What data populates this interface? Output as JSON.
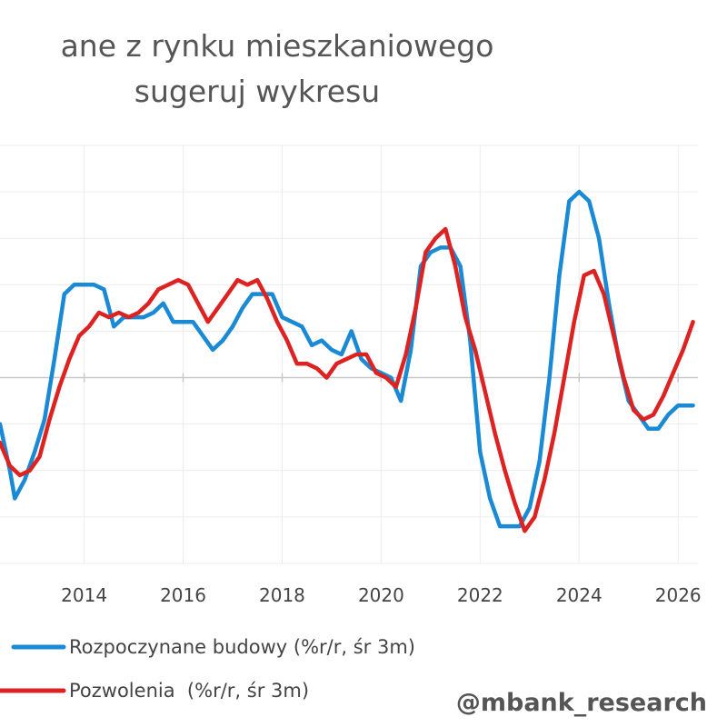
{
  "chart_data": {
    "type": "line",
    "title_lines": [
      "ane z rynku mieszkaniowego",
      "sugeruj wykresu"
    ],
    "xlim": [
      2012.3,
      2026.4
    ],
    "ylim": [
      -40,
      50
    ],
    "x_ticks": [
      2014,
      2016,
      2018,
      2020,
      2022,
      2024,
      2026
    ],
    "x_tick_labels": [
      "2014",
      "2016",
      "2018",
      "2020",
      "2022",
      "2024",
      "2026"
    ],
    "grid": true,
    "legend_position": "bottom-left",
    "watermark": "@mbank_research",
    "series": [
      {
        "name": "Rozpoczynane budowy (%r/r, śr 3m)",
        "color": "#1a8ad4",
        "points": [
          [
            2012.3,
            -10
          ],
          [
            2012.5,
            -20
          ],
          [
            2012.6,
            -26
          ],
          [
            2012.8,
            -22
          ],
          [
            2013.0,
            -16
          ],
          [
            2013.2,
            -9
          ],
          [
            2013.4,
            4
          ],
          [
            2013.6,
            18
          ],
          [
            2013.8,
            20
          ],
          [
            2014.0,
            20
          ],
          [
            2014.2,
            20
          ],
          [
            2014.4,
            19
          ],
          [
            2014.6,
            11
          ],
          [
            2014.8,
            13
          ],
          [
            2015.0,
            13
          ],
          [
            2015.2,
            13
          ],
          [
            2015.4,
            14
          ],
          [
            2015.6,
            16
          ],
          [
            2015.8,
            12
          ],
          [
            2016.0,
            12
          ],
          [
            2016.2,
            12
          ],
          [
            2016.4,
            9
          ],
          [
            2016.6,
            6
          ],
          [
            2016.8,
            8
          ],
          [
            2017.0,
            11
          ],
          [
            2017.2,
            15
          ],
          [
            2017.4,
            18
          ],
          [
            2017.6,
            18
          ],
          [
            2017.8,
            18
          ],
          [
            2018.0,
            13
          ],
          [
            2018.2,
            12
          ],
          [
            2018.4,
            11
          ],
          [
            2018.6,
            7
          ],
          [
            2018.8,
            8
          ],
          [
            2019.0,
            6
          ],
          [
            2019.2,
            5
          ],
          [
            2019.4,
            10
          ],
          [
            2019.6,
            4
          ],
          [
            2019.8,
            2
          ],
          [
            2020.0,
            1
          ],
          [
            2020.2,
            0
          ],
          [
            2020.4,
            -5
          ],
          [
            2020.6,
            6
          ],
          [
            2020.8,
            24
          ],
          [
            2021.0,
            27
          ],
          [
            2021.2,
            28
          ],
          [
            2021.4,
            28
          ],
          [
            2021.6,
            24
          ],
          [
            2021.8,
            8
          ],
          [
            2022.0,
            -16
          ],
          [
            2022.2,
            -26
          ],
          [
            2022.4,
            -32
          ],
          [
            2022.6,
            -32
          ],
          [
            2022.8,
            -32
          ],
          [
            2023.0,
            -28
          ],
          [
            2023.2,
            -18
          ],
          [
            2023.4,
            0
          ],
          [
            2023.6,
            22
          ],
          [
            2023.8,
            38
          ],
          [
            2024.0,
            40
          ],
          [
            2024.2,
            38
          ],
          [
            2024.4,
            30
          ],
          [
            2024.6,
            16
          ],
          [
            2024.8,
            4
          ],
          [
            2025.0,
            -5
          ],
          [
            2025.2,
            -8
          ],
          [
            2025.4,
            -11
          ],
          [
            2025.6,
            -11
          ],
          [
            2025.8,
            -8
          ],
          [
            2026.0,
            -6
          ],
          [
            2026.3,
            -6
          ]
        ]
      },
      {
        "name": "Pozwolenia  (%r/r, śr 3m)",
        "color": "#dd2222",
        "points": [
          [
            2012.3,
            -14
          ],
          [
            2012.5,
            -19
          ],
          [
            2012.7,
            -21
          ],
          [
            2012.9,
            -20
          ],
          [
            2013.1,
            -17
          ],
          [
            2013.3,
            -9
          ],
          [
            2013.5,
            -2
          ],
          [
            2013.7,
            4
          ],
          [
            2013.9,
            9
          ],
          [
            2014.1,
            11
          ],
          [
            2014.3,
            14
          ],
          [
            2014.5,
            13
          ],
          [
            2014.7,
            14
          ],
          [
            2014.9,
            13
          ],
          [
            2015.1,
            14
          ],
          [
            2015.3,
            16
          ],
          [
            2015.5,
            19
          ],
          [
            2015.7,
            20
          ],
          [
            2015.9,
            21
          ],
          [
            2016.1,
            20
          ],
          [
            2016.3,
            16
          ],
          [
            2016.5,
            12
          ],
          [
            2016.7,
            15
          ],
          [
            2016.9,
            18
          ],
          [
            2017.1,
            21
          ],
          [
            2017.3,
            20
          ],
          [
            2017.5,
            21
          ],
          [
            2017.7,
            17
          ],
          [
            2017.9,
            12
          ],
          [
            2018.1,
            8
          ],
          [
            2018.3,
            3
          ],
          [
            2018.5,
            3
          ],
          [
            2018.7,
            2
          ],
          [
            2018.9,
            0
          ],
          [
            2019.1,
            3
          ],
          [
            2019.3,
            4
          ],
          [
            2019.5,
            5
          ],
          [
            2019.7,
            5
          ],
          [
            2019.9,
            1
          ],
          [
            2020.1,
            0
          ],
          [
            2020.3,
            -2
          ],
          [
            2020.5,
            5
          ],
          [
            2020.7,
            15
          ],
          [
            2020.9,
            27
          ],
          [
            2021.1,
            30
          ],
          [
            2021.3,
            32
          ],
          [
            2021.5,
            24
          ],
          [
            2021.7,
            13
          ],
          [
            2021.9,
            6
          ],
          [
            2022.1,
            -3
          ],
          [
            2022.3,
            -12
          ],
          [
            2022.5,
            -20
          ],
          [
            2022.7,
            -27
          ],
          [
            2022.9,
            -33
          ],
          [
            2023.1,
            -30
          ],
          [
            2023.3,
            -22
          ],
          [
            2023.5,
            -12
          ],
          [
            2023.7,
            0
          ],
          [
            2023.9,
            12
          ],
          [
            2024.1,
            22
          ],
          [
            2024.3,
            23
          ],
          [
            2024.5,
            18
          ],
          [
            2024.7,
            9
          ],
          [
            2024.9,
            0
          ],
          [
            2025.1,
            -7
          ],
          [
            2025.3,
            -9
          ],
          [
            2025.5,
            -8
          ],
          [
            2025.7,
            -4
          ],
          [
            2025.9,
            1
          ],
          [
            2026.1,
            6
          ],
          [
            2026.3,
            12
          ]
        ]
      }
    ]
  }
}
